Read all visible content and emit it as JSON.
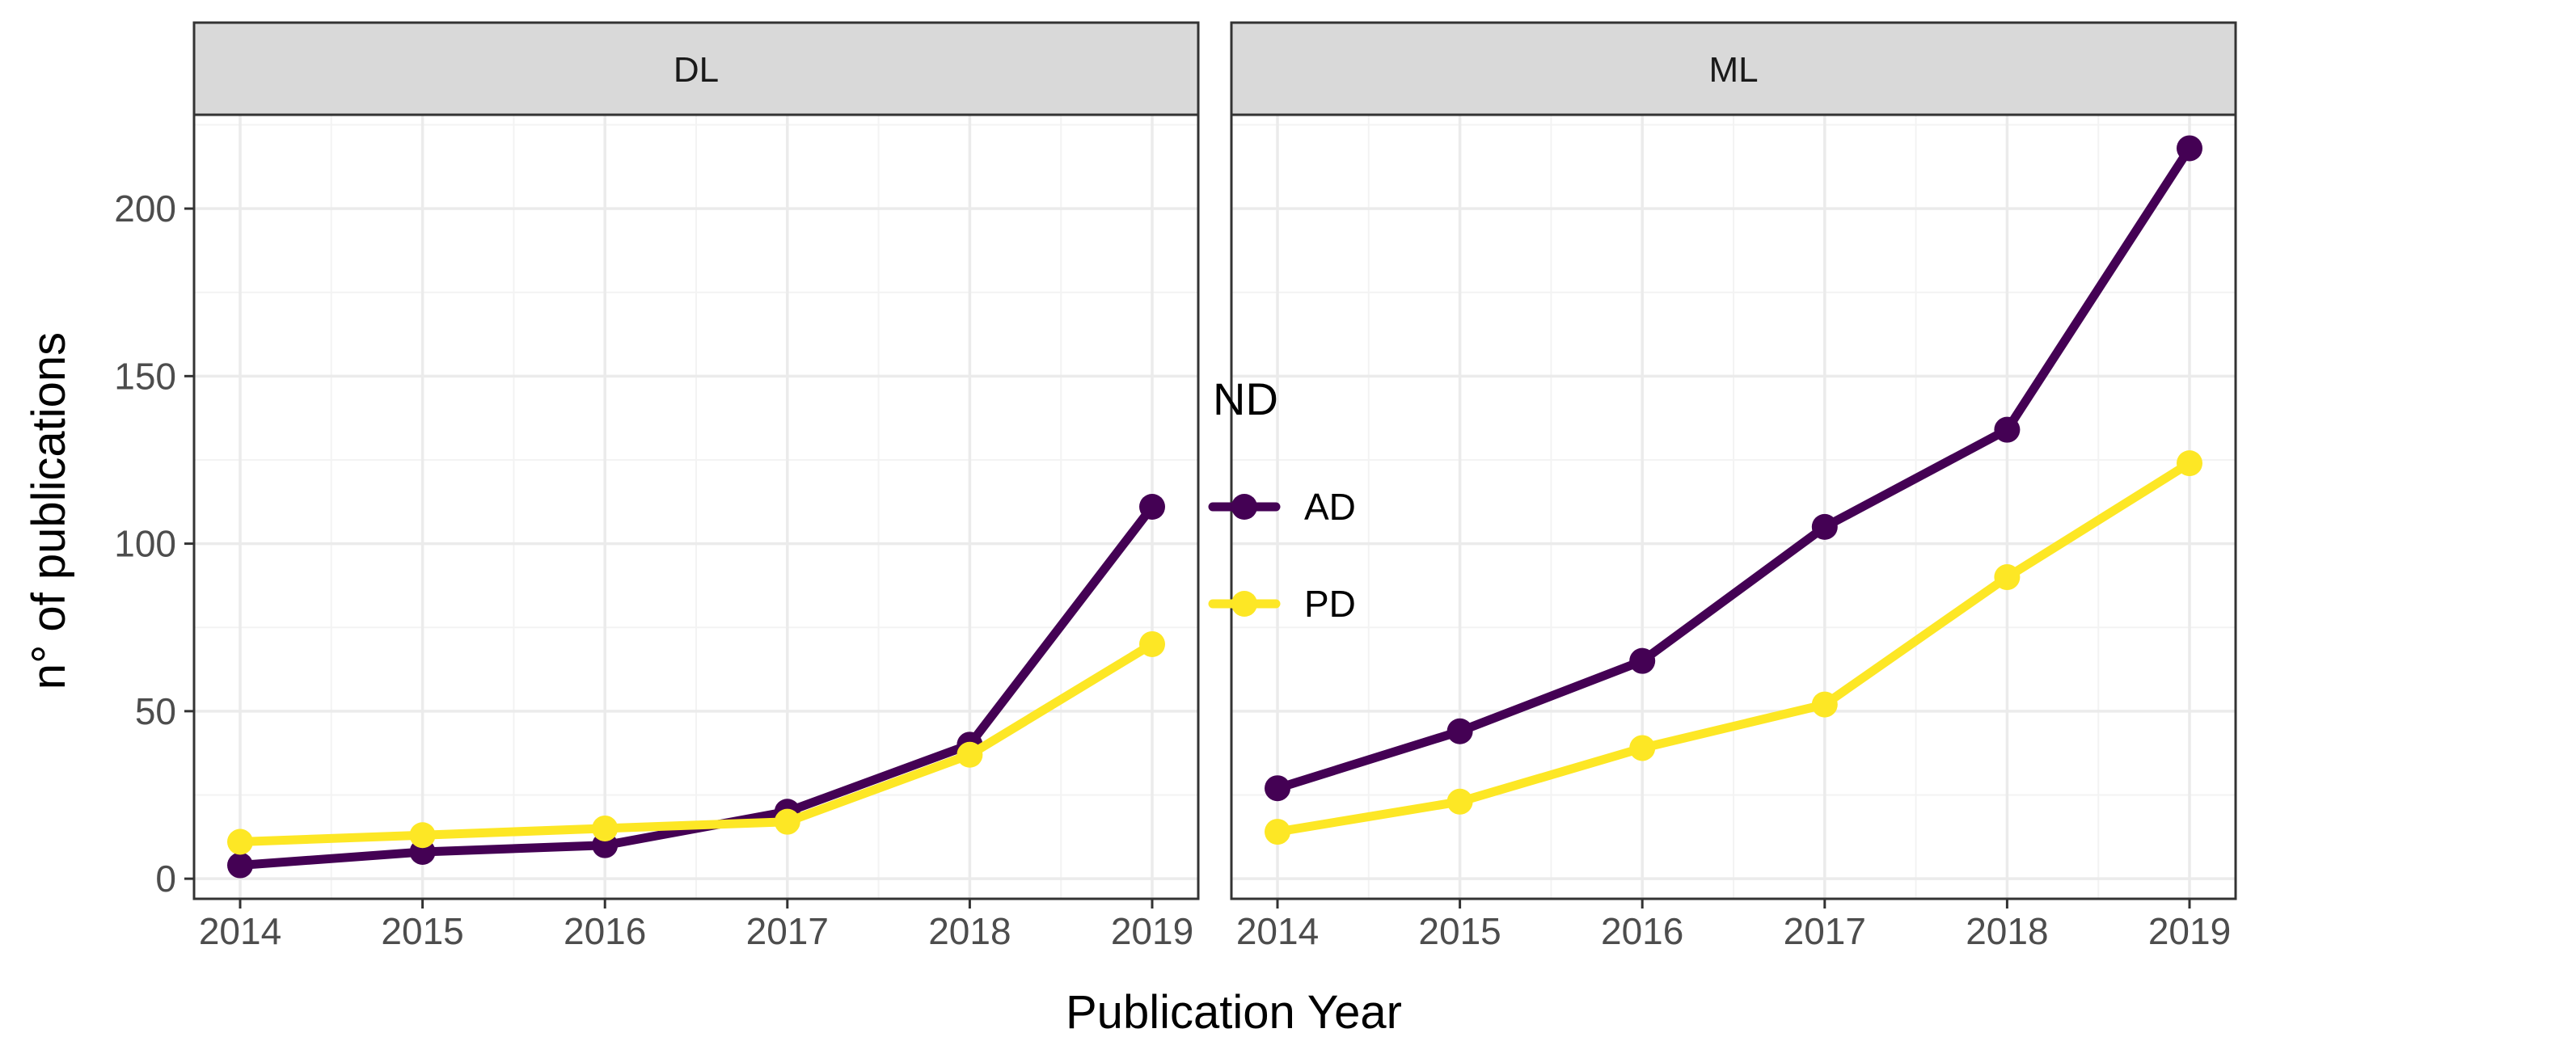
{
  "chart_data": {
    "type": "line",
    "xlabel": "Publication Year",
    "ylabel": "n° of publications",
    "ylim": [
      -6,
      228
    ],
    "yticks": [
      0,
      50,
      100,
      150,
      200
    ],
    "x": [
      2014,
      2015,
      2016,
      2017,
      2018,
      2019
    ],
    "grid": true,
    "legend": {
      "title": "ND",
      "placement": "right",
      "entries": [
        {
          "name": "AD",
          "color": "#440154"
        },
        {
          "name": "PD",
          "color": "#fde725"
        }
      ]
    },
    "panels": [
      {
        "label": "DL",
        "series": [
          {
            "name": "AD",
            "color": "#440154",
            "values": [
              4,
              8,
              10,
              20,
              40,
              111
            ]
          },
          {
            "name": "PD",
            "color": "#fde725",
            "values": [
              11,
              13,
              15,
              17,
              37,
              70
            ]
          }
        ]
      },
      {
        "label": "ML",
        "series": [
          {
            "name": "AD",
            "color": "#440154",
            "values": [
              27,
              44,
              65,
              105,
              134,
              218
            ]
          },
          {
            "name": "PD",
            "color": "#fde725",
            "values": [
              14,
              23,
              39,
              52,
              90,
              124
            ]
          }
        ]
      }
    ]
  }
}
